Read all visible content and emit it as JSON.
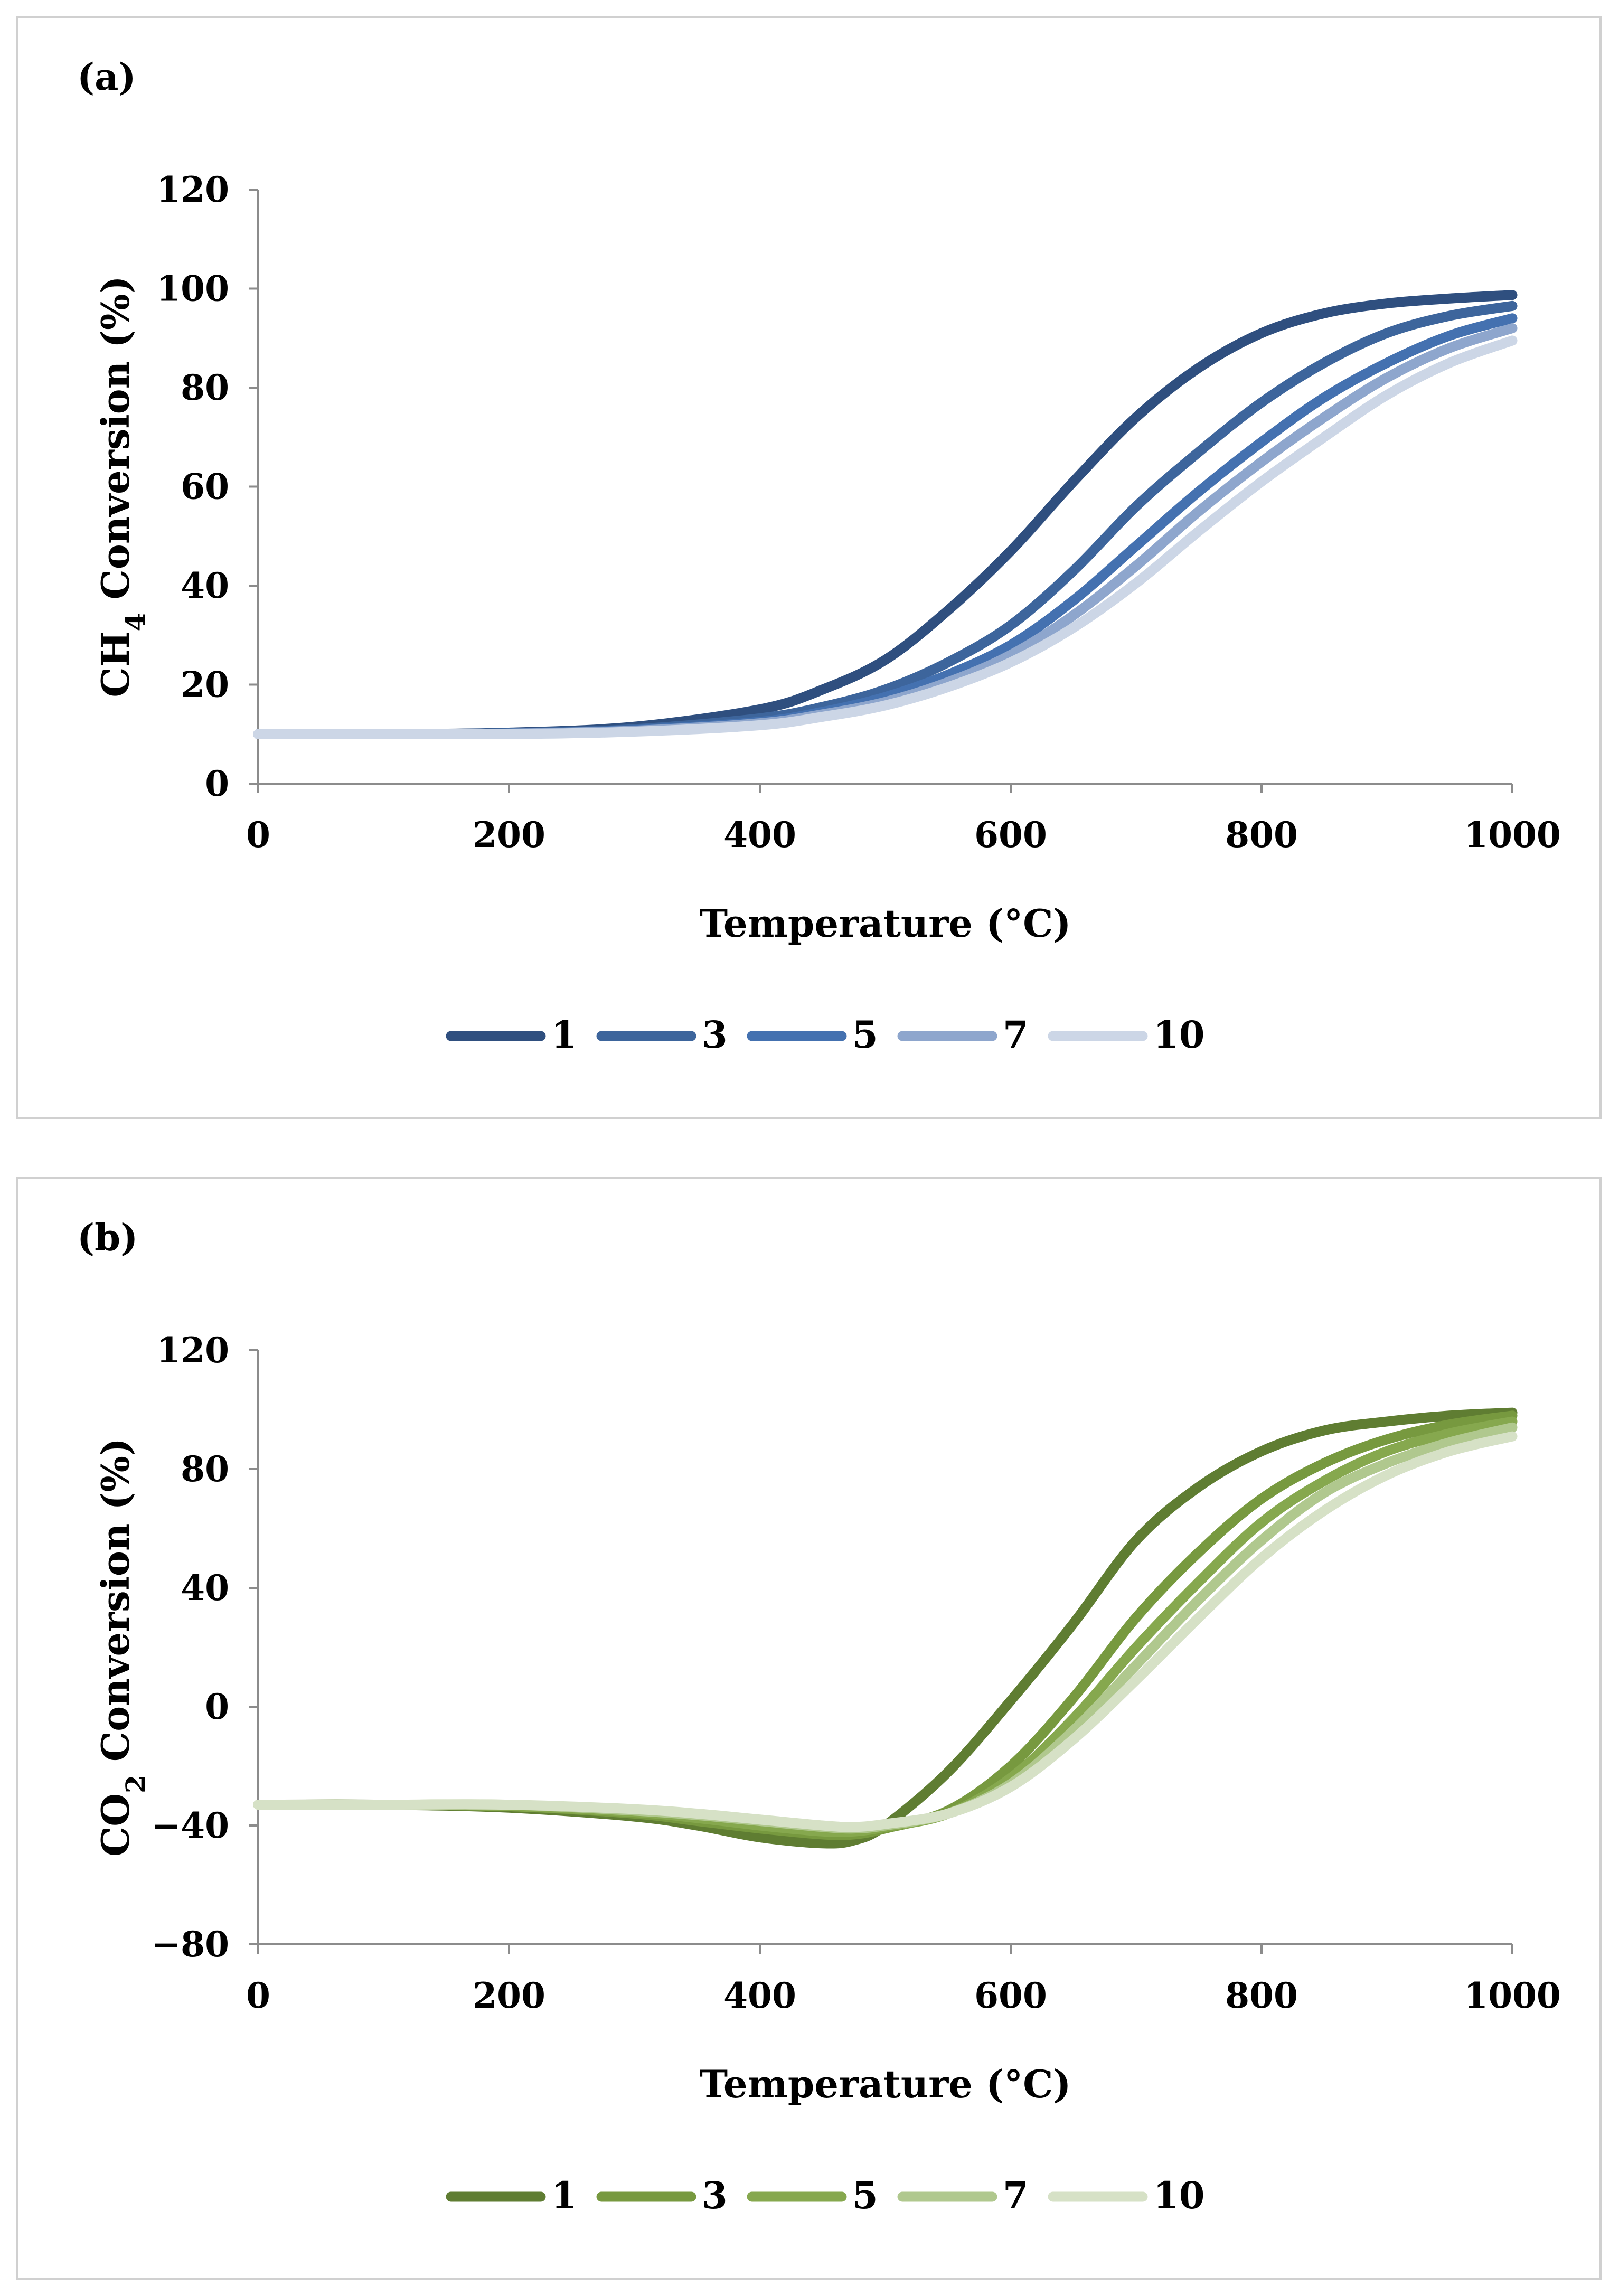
{
  "chart_data": [
    {
      "type": "line",
      "panel_label": "(a)",
      "xlabel": "Temperature (°C)",
      "ylabel_main": "CH",
      "ylabel_sub": "4",
      "ylabel_rest": " Conversion (%)",
      "xlim": [
        0,
        1000
      ],
      "ylim": [
        0,
        120
      ],
      "xticks": [
        0,
        200,
        400,
        600,
        800,
        1000
      ],
      "yticks": [
        0,
        20,
        40,
        60,
        80,
        100,
        120
      ],
      "legend_position": "bottom",
      "x": [
        0,
        100,
        200,
        300,
        400,
        450,
        500,
        550,
        600,
        650,
        700,
        750,
        800,
        850,
        900,
        950,
        1000
      ],
      "series": [
        {
          "name": "1",
          "color": "#2f4f7f",
          "values": [
            10,
            10,
            10.3,
            11.5,
            15,
            19,
            25,
            35,
            47,
            61,
            74,
            84,
            91,
            95,
            97,
            98,
            98.7
          ]
        },
        {
          "name": "3",
          "color": "#3d659c",
          "values": [
            10,
            10,
            10.2,
            11,
            13.2,
            15.5,
            19,
            24.5,
            32,
            43,
            56,
            67,
            77,
            85,
            91,
            94.5,
            96.5
          ]
        },
        {
          "name": "5",
          "color": "#4471b0",
          "values": [
            10,
            10,
            10.1,
            10.8,
            12.5,
            14.5,
            17.5,
            22,
            28,
            37,
            48,
            59,
            69,
            78,
            85,
            90.5,
            94
          ]
        },
        {
          "name": "7",
          "color": "#8ea6cd",
          "values": [
            10,
            10,
            10.1,
            10.7,
            12.2,
            14,
            16.5,
            20.5,
            26,
            34,
            44,
            55,
            65,
            74,
            82,
            88,
            92
          ]
        },
        {
          "name": "10",
          "color": "#ccd6e6",
          "values": [
            10,
            10,
            10,
            10.5,
            11.8,
            13.5,
            15.8,
            19.5,
            24.5,
            31.5,
            40.5,
            51,
            61,
            70,
            78.5,
            85,
            89.5
          ]
        }
      ]
    },
    {
      "type": "line",
      "panel_label": "(b)",
      "xlabel": "Temperature (°C)",
      "ylabel_main": "CO",
      "ylabel_sub": "2",
      "ylabel_rest": " Conversion (%)",
      "xlim": [
        0,
        1000
      ],
      "ylim": [
        -80,
        120
      ],
      "xticks": [
        0,
        200,
        400,
        600,
        800,
        1000
      ],
      "yticks": [
        -80,
        -40,
        0,
        40,
        80,
        120
      ],
      "ytick_labels": [
        "−80",
        "−40",
        "0",
        "40",
        "80",
        "120"
      ],
      "legend_position": "bottom",
      "x": [
        0,
        100,
        200,
        300,
        350,
        400,
        450,
        475,
        500,
        550,
        600,
        650,
        700,
        750,
        800,
        850,
        900,
        950,
        1000
      ],
      "series": [
        {
          "name": "1",
          "color": "#5f7d32",
          "values": [
            -33,
            -33,
            -34,
            -37,
            -40,
            -44,
            -46,
            -45,
            -40,
            -22,
            2,
            28,
            56,
            74,
            86,
            93,
            96,
            98,
            99
          ]
        },
        {
          "name": "3",
          "color": "#77993f",
          "values": [
            -33,
            -33,
            -33.5,
            -36,
            -38.5,
            -41,
            -43,
            -43,
            -41,
            -35,
            -20,
            3,
            30,
            52,
            70,
            82,
            90,
            95,
            98
          ]
        },
        {
          "name": "5",
          "color": "#86a84e",
          "values": [
            -33,
            -33,
            -33.5,
            -35.5,
            -37.5,
            -40,
            -42,
            -42,
            -40.5,
            -36,
            -24,
            -4,
            20,
            42,
            62,
            76,
            86,
            92,
            96
          ]
        },
        {
          "name": "7",
          "color": "#b0c88e",
          "values": [
            -33,
            -33,
            -33,
            -35,
            -36.5,
            -38.5,
            -40.5,
            -41,
            -40,
            -36,
            -26,
            -8,
            14,
            36,
            56,
            72,
            82,
            89,
            94
          ]
        },
        {
          "name": "10",
          "color": "#d6e1c6",
          "values": [
            -33,
            -33,
            -33,
            -34.5,
            -36,
            -38,
            -40,
            -40.5,
            -39.5,
            -36,
            -27,
            -11,
            9,
            30,
            50,
            66,
            78,
            86,
            91
          ]
        }
      ]
    }
  ]
}
